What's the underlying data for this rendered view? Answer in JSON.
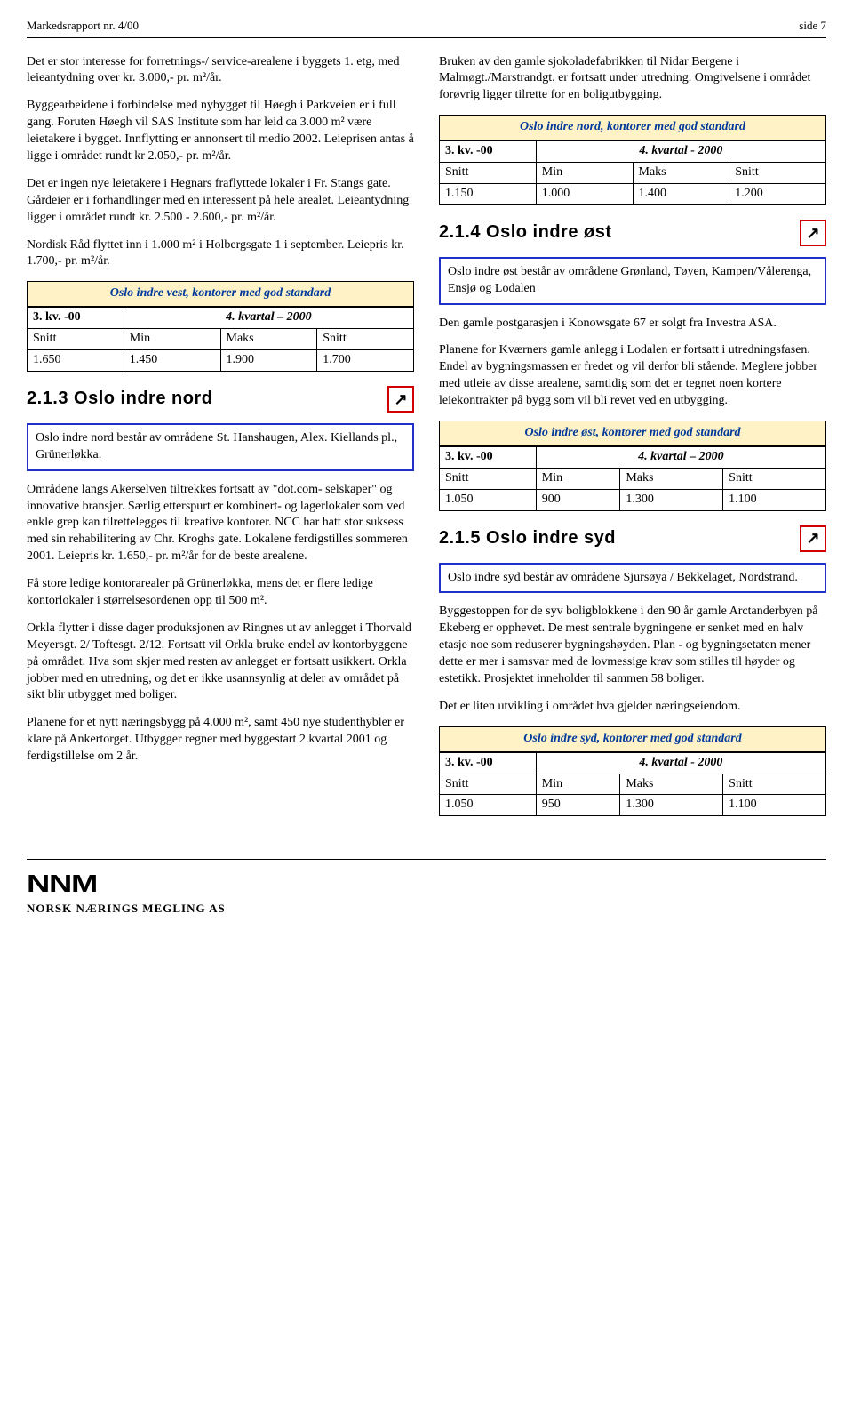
{
  "header": {
    "left": "Markedsrapport nr. 4/00",
    "right": "side 7"
  },
  "left_col": {
    "p1": "Det er stor interesse for forretnings-/ service-arealene i byggets 1. etg, med leieantydning over kr. 3.000,- pr. m²/år.",
    "p2": "Byggearbeidene i forbindelse med nybygget til Høegh i Parkveien er i full gang. Foruten Høegh vil SAS Institute som har leid ca 3.000 m² være leietakere i bygget. Innflytting er annonsert til medio 2002. Leieprisen antas å ligge i området rundt kr 2.050,- pr. m²/år.",
    "p3": "Det er ingen nye leietakere i Hegnars fraflyttede lokaler i Fr. Stangs gate. Gårdeier er i forhandlinger med en interessent på hele arealet. Leieantydning ligger i området rundt kr. 2.500 - 2.600,- pr. m²/år.",
    "p4": "Nordisk Råd flyttet inn i 1.000 m² i Holbergsgate 1 i september. Leiepris kr. 1.700,- pr. m²/år.",
    "table_vest": {
      "title": "Oslo indre vest, kontorer med god standard",
      "h_left": "3. kv. -00",
      "h_right": "4. kvartal – 2000",
      "sub": [
        "Snitt",
        "Min",
        "Maks",
        "Snitt"
      ],
      "row": [
        "1.650",
        "1.450",
        "1.900",
        "1.700"
      ]
    },
    "sec_213": "2.1.3 Oslo indre nord",
    "arrow_213": "↗",
    "bluebox_nord": "Oslo indre nord består av områdene St. Hanshaugen, Alex. Kiellands pl., Grünerløkka.",
    "p5": "Områdene langs Akerselven tiltrekkes fortsatt av \"dot.com- selskaper\" og innovative bransjer. Særlig etterspurt er kombinert- og lagerlokaler som ved enkle grep kan tilrettelegges til kreative kontorer. NCC har hatt stor suksess med sin rehabilitering av Chr. Kroghs gate. Lokalene ferdigstilles sommeren 2001. Leiepris kr. 1.650,- pr. m²/år for de beste arealene.",
    "p6": "Få store ledige kontorarealer på Grünerløkka, mens det er flere ledige kontorlokaler i størrelsesordenen opp til 500 m².",
    "p7": "Orkla flytter i disse dager produksjonen av Ringnes ut av anlegget i Thorvald Meyersgt. 2/ Toftesgt. 2/12. Fortsatt vil Orkla bruke endel av kontorbyggene på området. Hva som skjer med resten av anlegget er fortsatt usikkert. Orkla jobber med en utredning, og det er ikke usannsynlig at deler av området på sikt blir utbygget med boliger.",
    "p8": "Planene for et nytt næringsbygg på 4.000 m², samt 450 nye studenthybler er klare på Ankertorget. Utbygger regner med byggestart 2.kvartal 2001 og ferdigstillelse om 2 år."
  },
  "right_col": {
    "p1": "Bruken av den gamle sjokoladefabrikken til Nidar Bergene i Malmøgt./Marstrandgt. er fortsatt under utredning. Omgivelsene i området forøvrig ligger tilrette for en boligutbygging.",
    "table_nord": {
      "title": "Oslo indre nord, kontorer med god standard",
      "h_left": "3. kv. -00",
      "h_right": "4. kvartal - 2000",
      "sub": [
        "Snitt",
        "Min",
        "Maks",
        "Snitt"
      ],
      "row": [
        "1.150",
        "1.000",
        "1.400",
        "1.200"
      ]
    },
    "sec_214": "2.1.4 Oslo indre øst",
    "arrow_214": "↗",
    "bluebox_ost": "Oslo indre øst består av områdene Grønland, Tøyen, Kampen/Vålerenga, Ensjø og Lodalen",
    "p2": "Den gamle postgarasjen i Konowsgate 67 er solgt fra Investra ASA.",
    "p3": "Planene for Kværners gamle anlegg i Lodalen er fortsatt i utredningsfasen. Endel av bygningsmassen er fredet og vil derfor bli stående. Meglere jobber med utleie av disse arealene, samtidig som det er tegnet noen kortere leiekontrakter på bygg som vil bli revet ved en utbygging.",
    "table_ost": {
      "title": "Oslo indre øst, kontorer med god standard",
      "h_left": "3. kv. -00",
      "h_right": "4. kvartal – 2000",
      "sub": [
        "Snitt",
        "Min",
        "Maks",
        "Snitt"
      ],
      "row": [
        "1.050",
        "900",
        "1.300",
        "1.100"
      ]
    },
    "sec_215": "2.1.5 Oslo indre syd",
    "arrow_215": "↗",
    "bluebox_syd": "Oslo indre syd består av områdene Sjursøya / Bekkelaget, Nordstrand.",
    "p4": "Byggestoppen for de syv boligblokkene i den 90 år gamle Arctanderbyen på Ekeberg er opphevet. De mest sentrale bygningene er senket med en halv etasje noe som reduserer bygningshøyden. Plan - og bygningsetaten mener dette er mer i samsvar med de lovmessige krav som stilles til høyder og estetikk. Prosjektet inneholder til sammen 58 boliger.",
    "p5": "Det er liten utvikling i området hva gjelder næringseiendom.",
    "table_syd": {
      "title": "Oslo indre syd, kontorer med god standard",
      "h_left": "3. kv. -00",
      "h_right": "4. kvartal - 2000",
      "sub": [
        "Snitt",
        "Min",
        "Maks",
        "Snitt"
      ],
      "row": [
        "1.050",
        "950",
        "1.300",
        "1.100"
      ]
    }
  },
  "footer": {
    "logo": "NNM",
    "sub": "NORSK NÆRINGS MEGLING AS"
  }
}
